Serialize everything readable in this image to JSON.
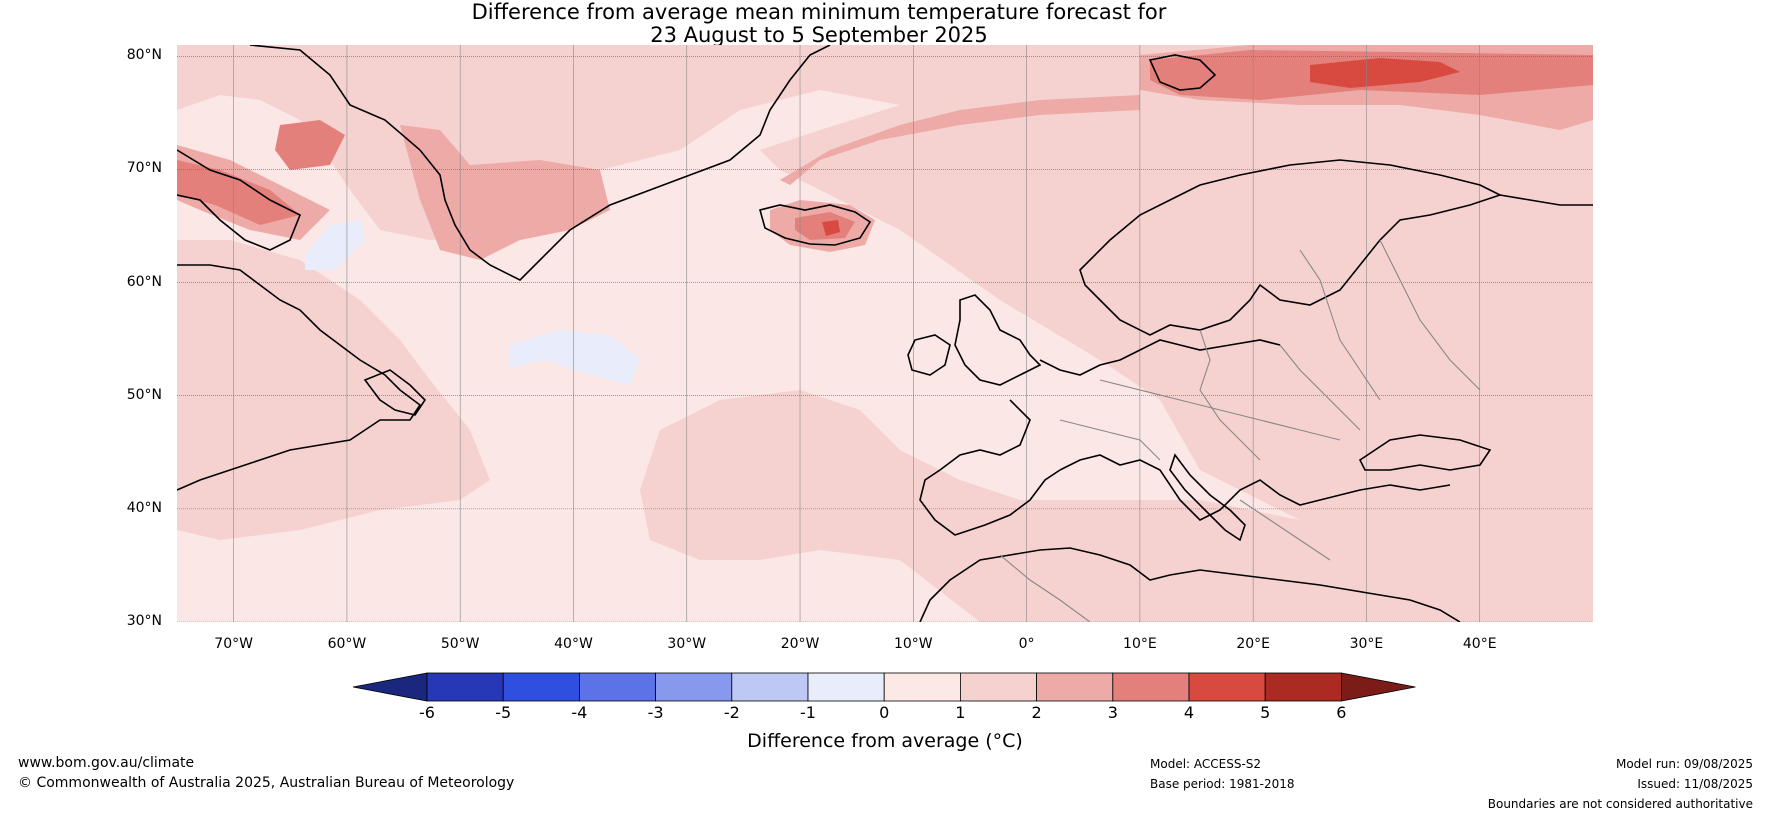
{
  "title": {
    "line1": "Difference from average mean minimum temperature forecast for",
    "line2": "23 August to 5 September 2025"
  },
  "map": {
    "lat_labels": [
      "80°N",
      "70°N",
      "60°N",
      "50°N",
      "40°N",
      "30°N"
    ],
    "lat_values": [
      80,
      70,
      60,
      50,
      40,
      30
    ],
    "lon_labels": [
      "70°W",
      "60°W",
      "50°W",
      "40°W",
      "30°W",
      "20°W",
      "10°W",
      "0°",
      "10°E",
      "20°E",
      "30°E",
      "40°E"
    ],
    "lon_values": [
      -70,
      -60,
      -50,
      -40,
      -30,
      -20,
      -10,
      0,
      10,
      20,
      30,
      40
    ],
    "extent": {
      "lon_min": -75,
      "lon_max": 50,
      "lat_min": 30,
      "lat_max": 81
    },
    "ocean_color": "#fbe7e5",
    "land_line_color": "#000000",
    "border_color": "#888888"
  },
  "colorbar": {
    "ticks": [
      "-6",
      "-5",
      "-4",
      "-3",
      "-2",
      "-1",
      "0",
      "1",
      "2",
      "3",
      "4",
      "5",
      "6"
    ],
    "colors": [
      "#2638b6",
      "#2f4fe0",
      "#5c73e8",
      "#8699ec",
      "#bec8f4",
      "#e8ecfb",
      "#fce9e6",
      "#f5d2d0",
      "#eeaaa7",
      "#e4807b",
      "#d84a3f",
      "#ab2a22"
    ],
    "low_extend": "#19287e",
    "high_extend": "#7c1c18",
    "label": "Difference from average (°C)"
  },
  "footer": {
    "website": "www.bom.gov.au/climate",
    "copyright": "© Commonwealth of Australia 2025, Australian Bureau of Meteorology",
    "model": "Model: ACCESS-S2",
    "base_period": "Base period: 1981-2018",
    "model_run": "Model run: 09/08/2025",
    "issued": "Issued: 11/08/2025",
    "disclaimer": "Boundaries are not considered authoritative"
  }
}
